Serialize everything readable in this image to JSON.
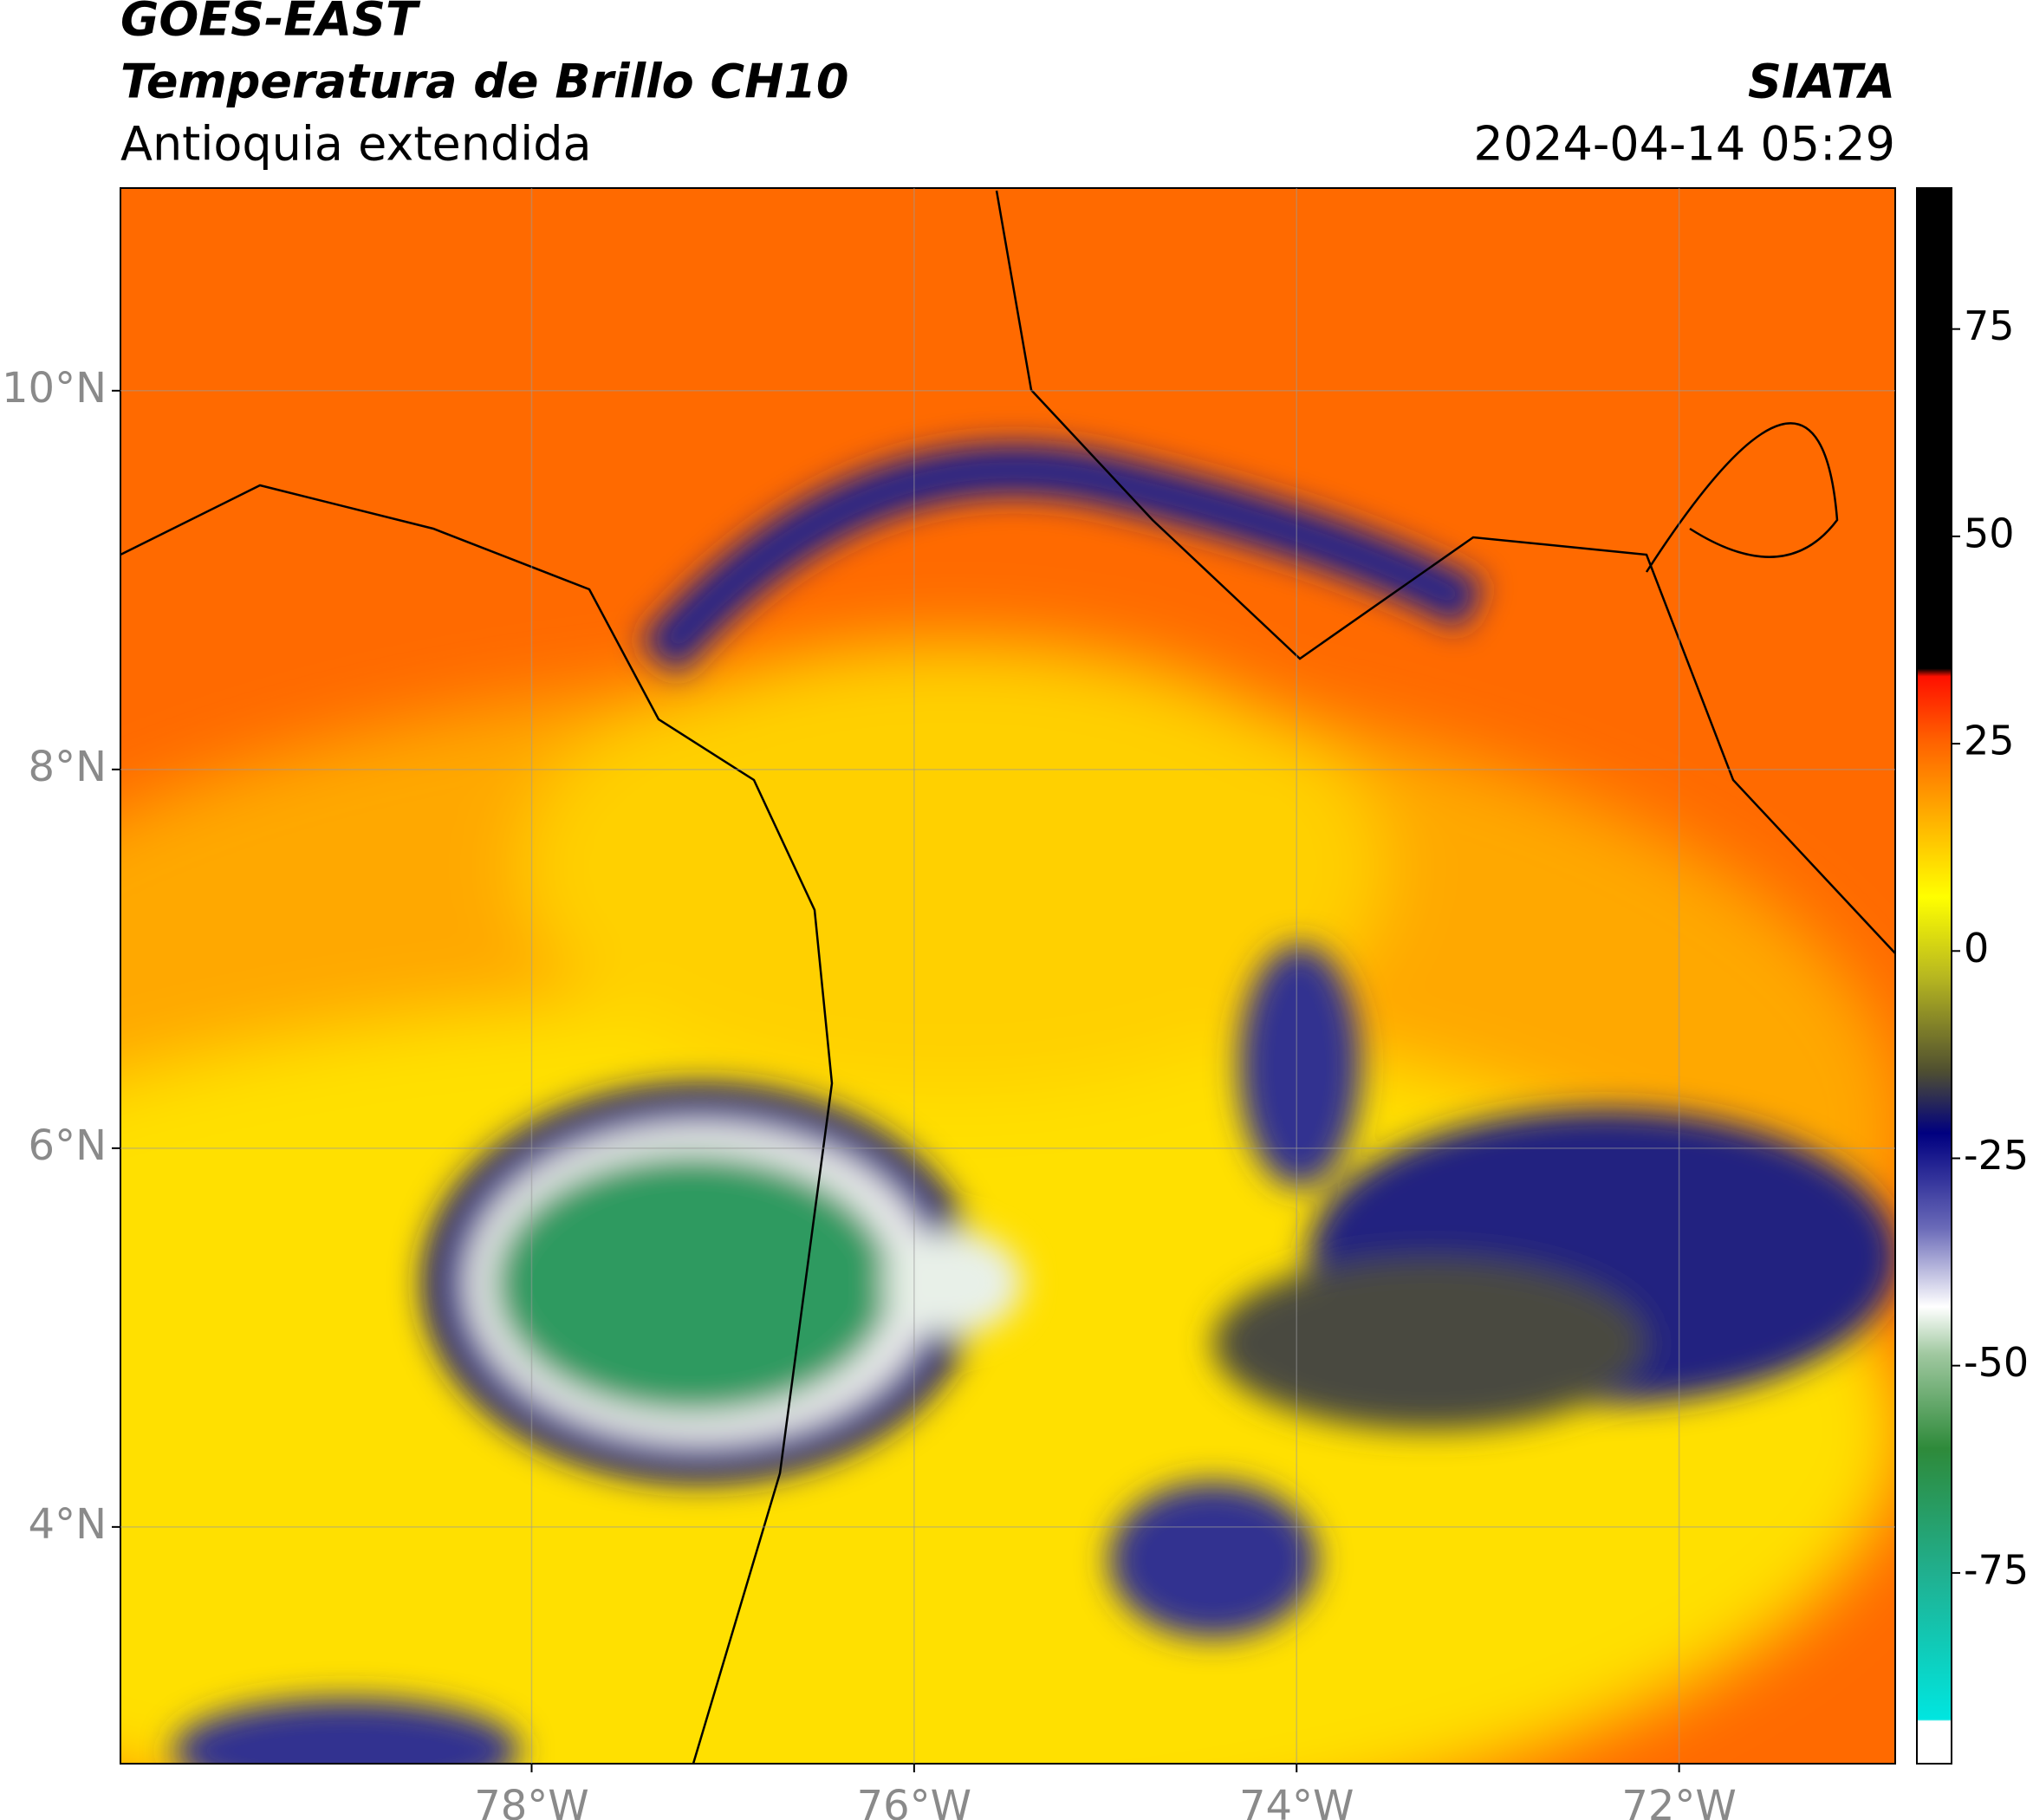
{
  "map": {
    "title": "GOES-EAST",
    "subtitle": "Temperatura de Brillo CH10",
    "region": "Antioquia extendida",
    "source": "SIATA",
    "datetime": "2024-04-14 05:29",
    "lon_lim": [
      -80.15,
      -70.87
    ],
    "lat_lim": [
      2.75,
      11.07
    ],
    "lon_ticks": [
      {
        "value": -78,
        "label": "78°W"
      },
      {
        "value": -76,
        "label": "76°W"
      },
      {
        "value": -74,
        "label": "74°W"
      },
      {
        "value": -72,
        "label": "72°W"
      }
    ],
    "lat_ticks": [
      {
        "value": 10,
        "label": "10°N"
      },
      {
        "value": 8,
        "label": "8°N"
      },
      {
        "value": 6,
        "label": "6°N"
      },
      {
        "value": 4,
        "label": "4°N"
      }
    ],
    "grid": true,
    "colorbar": {
      "lim": [
        -98,
        92
      ],
      "ticks": [
        75,
        50,
        25,
        0,
        -25,
        -50,
        -75
      ]
    }
  }
}
